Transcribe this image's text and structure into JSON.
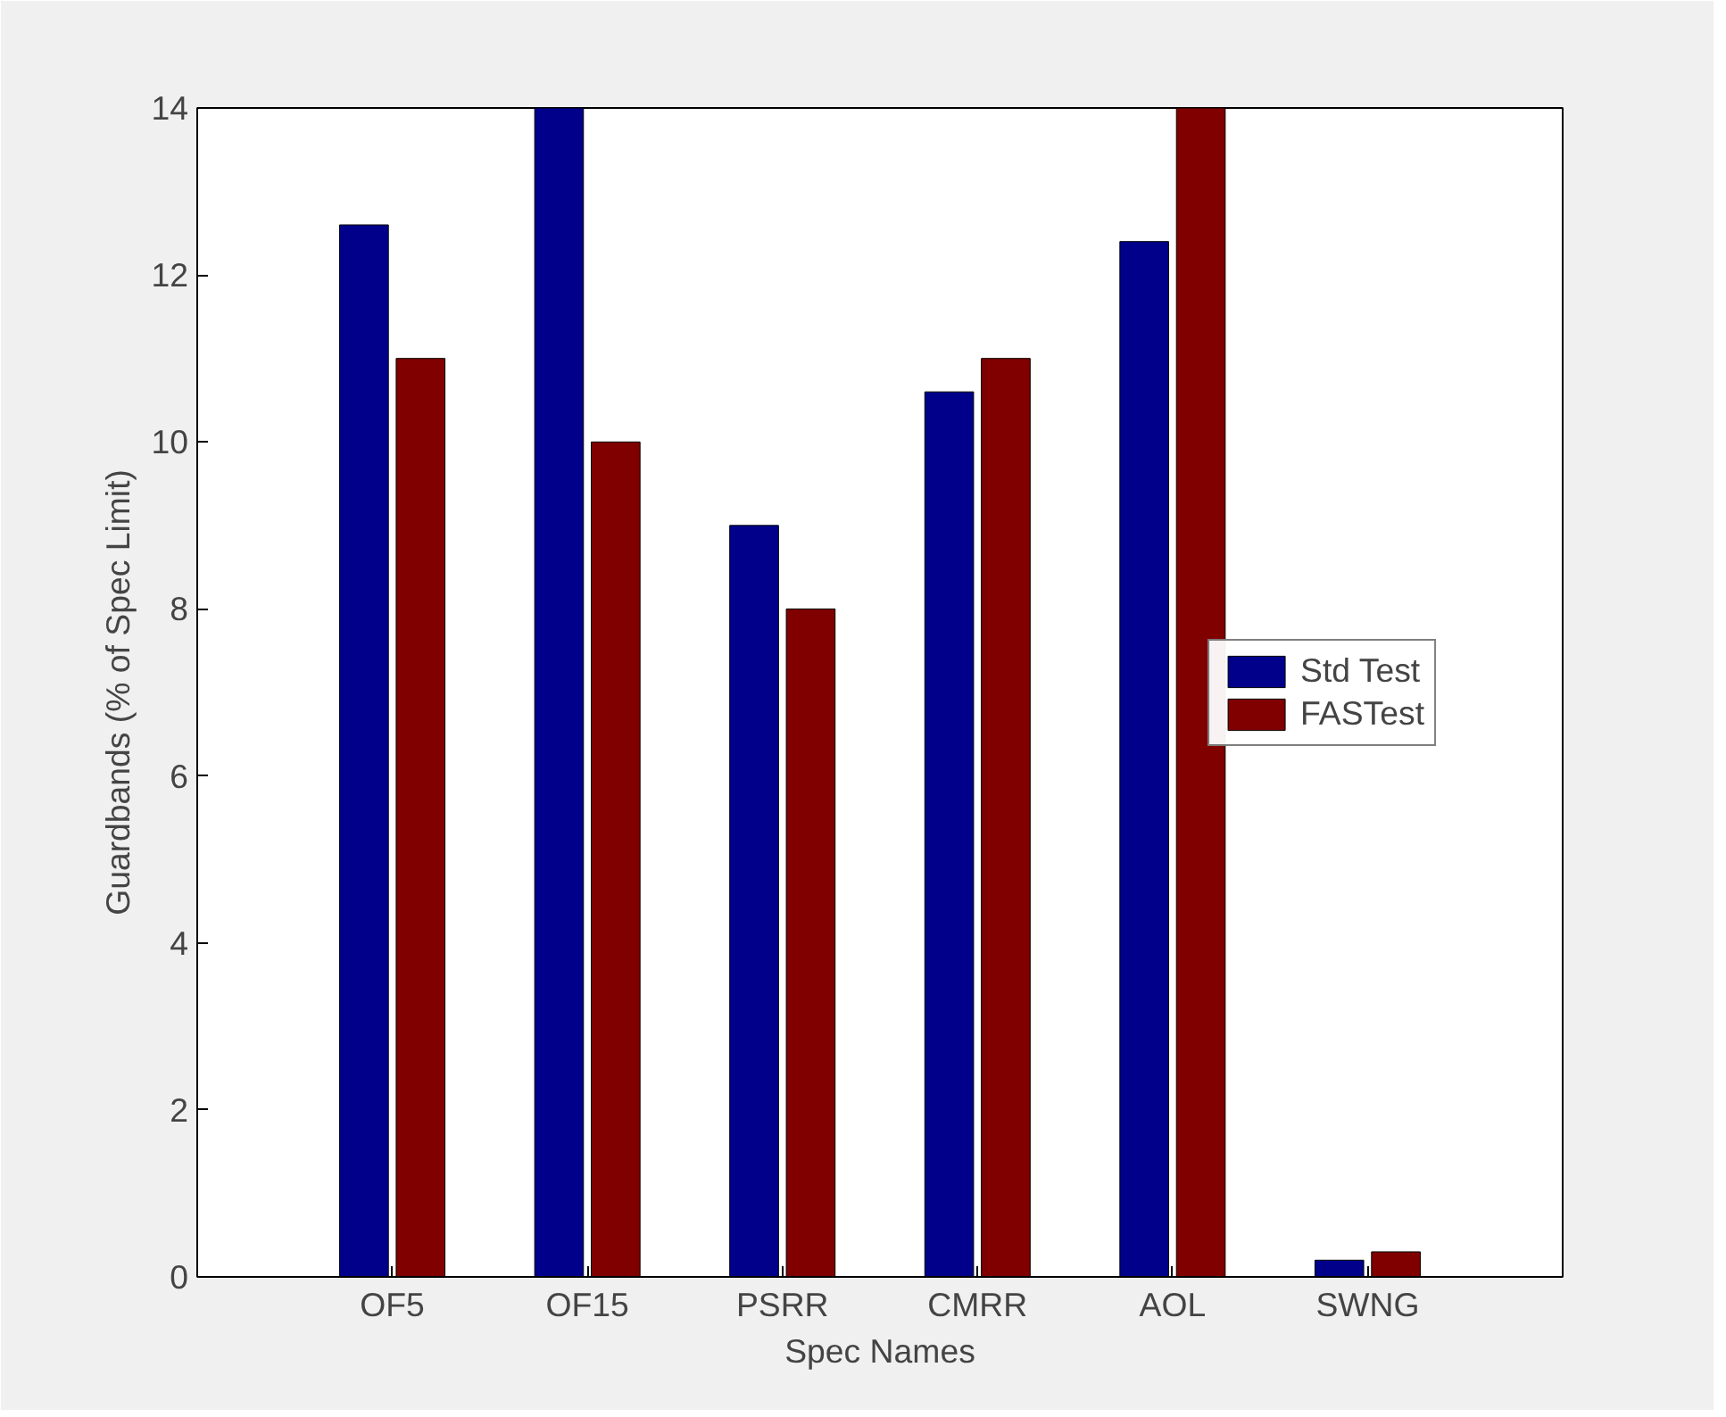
{
  "chart_data": {
    "type": "bar",
    "xlabel": "Spec Names",
    "ylabel": "Guardbands (% of Spec Limit)",
    "categories": [
      "OF5",
      "OF15",
      "PSRR",
      "CMRR",
      "AOL",
      "SWNG"
    ],
    "series": [
      {
        "name": "Std Test",
        "color": "#00008b",
        "values": [
          12.6,
          14,
          9,
          10.6,
          12.4,
          0.2
        ]
      },
      {
        "name": "FASTest",
        "color": "#800000",
        "values": [
          11,
          10,
          8,
          11,
          14,
          0.3
        ]
      }
    ],
    "ylim": [
      0,
      14
    ],
    "yticks": [
      0,
      2,
      4,
      6,
      8,
      10,
      12,
      14
    ],
    "grid": false,
    "legend": "right"
  }
}
